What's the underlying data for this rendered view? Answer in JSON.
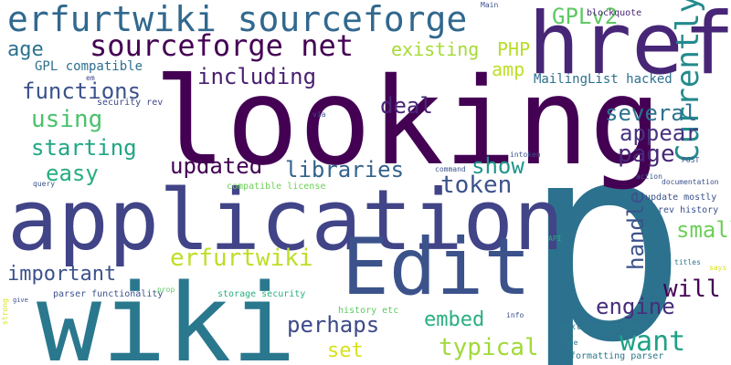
{
  "words": [
    {
      "text": "p",
      "color": "#2c728e",
      "rotate": false
    },
    {
      "text": "looking",
      "color": "#440154",
      "rotate": false
    },
    {
      "text": "wiki",
      "color": "#2a788e",
      "rotate": false
    },
    {
      "text": "application",
      "color": "#414487",
      "rotate": false
    },
    {
      "text": "href",
      "color": "#482677",
      "rotate": false
    },
    {
      "text": "Edit",
      "color": "#3b528b",
      "rotate": false
    },
    {
      "text": "erfurtwiki sourceforge",
      "color": "#31688e",
      "rotate": false
    },
    {
      "text": "sourceforge net",
      "color": "#440154",
      "rotate": false
    },
    {
      "text": "Currently",
      "color": "#238a8d",
      "rotate": true
    },
    {
      "text": "GPLv2",
      "color": "#5ec962",
      "rotate": false
    },
    {
      "text": "erfurtwiki",
      "color": "#bddf26",
      "rotate": false
    },
    {
      "text": "important",
      "color": "#3b528b",
      "rotate": false
    },
    {
      "text": "page",
      "color": "#482878",
      "rotate": false
    },
    {
      "text": "libraries",
      "color": "#33638d",
      "rotate": false
    },
    {
      "text": "updated",
      "color": "#440154",
      "rotate": false
    },
    {
      "text": "perhaps",
      "color": "#3e4a89",
      "rotate": false
    },
    {
      "text": "typical",
      "color": "#a0da39",
      "rotate": false
    },
    {
      "text": "want",
      "color": "#1fa187",
      "rotate": false
    },
    {
      "text": "functions",
      "color": "#3b528b",
      "rotate": false
    },
    {
      "text": "including",
      "color": "#481f70",
      "rotate": false
    },
    {
      "text": "using",
      "color": "#4ac16d",
      "rotate": false
    },
    {
      "text": "several",
      "color": "#2c728e",
      "rotate": false
    },
    {
      "text": "appear",
      "color": "#46337f",
      "rotate": false
    },
    {
      "text": "starting",
      "color": "#21a685",
      "rotate": false
    },
    {
      "text": "easy",
      "color": "#26ad81",
      "rotate": false
    },
    {
      "text": "token",
      "color": "#3b528b",
      "rotate": false
    },
    {
      "text": "show",
      "color": "#1f968b",
      "rotate": false
    },
    {
      "text": "small",
      "color": "#6ece58",
      "rotate": false
    },
    {
      "text": "handle",
      "color": "#3b528b",
      "rotate": true
    },
    {
      "text": "will",
      "color": "#440154",
      "rotate": false
    },
    {
      "text": "engine",
      "color": "#472d7b",
      "rotate": false
    },
    {
      "text": "embed",
      "color": "#29af7f",
      "rotate": false
    },
    {
      "text": "set",
      "color": "#d8e219",
      "rotate": false
    },
    {
      "text": "deal",
      "color": "#482677",
      "rotate": false
    },
    {
      "text": "age",
      "color": "#2c728e",
      "rotate": false
    },
    {
      "text": "existing",
      "color": "#a5db36",
      "rotate": false
    },
    {
      "text": "PHP",
      "color": "#b8de29",
      "rotate": false
    },
    {
      "text": "amp",
      "color": "#bddf26",
      "rotate": false
    },
    {
      "text": "GPL compatible",
      "color": "#2d708e",
      "rotate": false
    },
    {
      "text": "MailingList hacked",
      "color": "#2d708e",
      "rotate": false
    },
    {
      "text": "security rev",
      "color": "#3e4a89",
      "rotate": false
    },
    {
      "text": "em",
      "color": "#404688",
      "rotate": false
    },
    {
      "text": "compatible license",
      "color": "#6ece58",
      "rotate": false
    },
    {
      "text": "update mostly",
      "color": "#3b528b",
      "rotate": false
    },
    {
      "text": "rev history",
      "color": "#3b528b",
      "rotate": false
    },
    {
      "text": "documentation",
      "color": "#3b528b",
      "rotate": false
    },
    {
      "text": "blockquote",
      "color": "#482677",
      "rotate": false
    },
    {
      "text": "Main",
      "color": "#3b528b",
      "rotate": false
    },
    {
      "text": "via",
      "color": "#3b528b",
      "rotate": false
    },
    {
      "text": "intoken",
      "color": "#3b528b",
      "rotate": false
    },
    {
      "text": "command",
      "color": "#3b528b",
      "rotate": false
    },
    {
      "text": "action",
      "color": "#3b528b",
      "rotate": false
    },
    {
      "text": "POST",
      "color": "#3b528b",
      "rotate": false
    },
    {
      "text": "query",
      "color": "#3b528b",
      "rotate": false
    },
    {
      "text": "parser functionality",
      "color": "#3b528b",
      "rotate": false
    },
    {
      "text": "storage security",
      "color": "#29af7f",
      "rotate": false
    },
    {
      "text": "history etc",
      "color": "#5ec962",
      "rotate": false
    },
    {
      "text": "info",
      "color": "#3b528b",
      "rotate": false
    },
    {
      "text": "text formatting",
      "color": "#2a788e",
      "rotate": false
    },
    {
      "text": "formatting parser",
      "color": "#2a788e",
      "rotate": false
    },
    {
      "text": "one",
      "color": "#2a788e",
      "rotate": false
    },
    {
      "text": "API",
      "color": "#29af7f",
      "rotate": false
    },
    {
      "text": "prop",
      "color": "#5ec962",
      "rotate": false
    },
    {
      "text": "give",
      "color": "#3b528b",
      "rotate": false
    },
    {
      "text": "strong",
      "color": "#d8e219",
      "rotate": true
    },
    {
      "text": "titles",
      "color": "#2a788e",
      "rotate": false
    },
    {
      "text": "says",
      "color": "#d8e219",
      "rotate": false
    }
  ]
}
